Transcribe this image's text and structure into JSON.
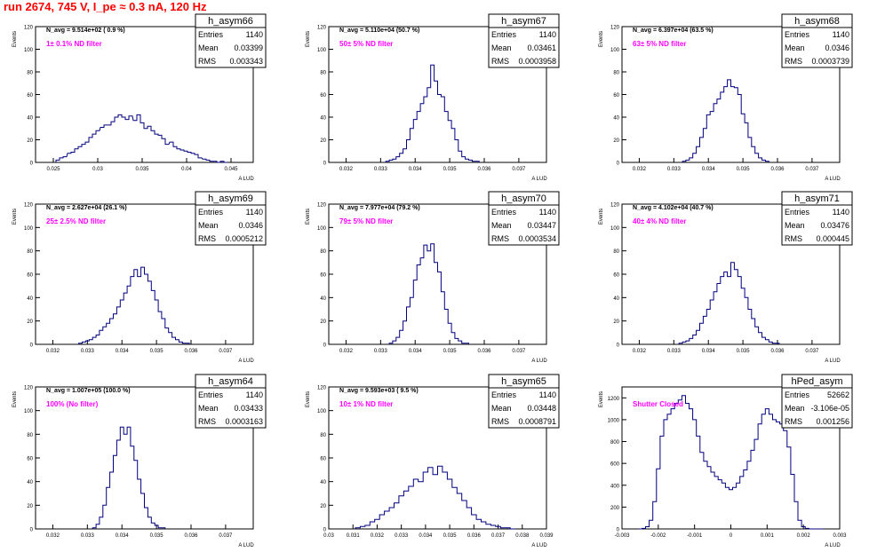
{
  "page_title": "run 2674,   745 V, I_pe ≈ 0.3 nA, 120 Hz",
  "colors": {
    "histogram": "#00007f",
    "annotation_magenta": "#ff00ff",
    "title_red": "#ff0000"
  },
  "stat_labels": {
    "entries": "Entries",
    "mean": "Mean",
    "rms": "RMS"
  },
  "chart_data": [
    {
      "name": "h_asym66",
      "type": "histogram",
      "navg": "N_avg = 9.514e+02 ( 0.9 %)",
      "note": "1± 0.1% ND filter",
      "entries": "1140",
      "mean": "0.03399",
      "rms": "0.003343",
      "xlim": [
        0.023,
        0.0475
      ],
      "ylim": [
        0,
        120
      ],
      "xticks": [
        "0.025",
        "0.03",
        "0.035",
        "0.04",
        "0.045"
      ],
      "xtick_vals": [
        0.025,
        0.03,
        0.035,
        0.04,
        0.045
      ],
      "yticks": [
        "0",
        "20",
        "40",
        "60",
        "80",
        "100",
        "120"
      ],
      "ytick_vals": [
        0,
        20,
        40,
        60,
        80,
        100,
        120
      ],
      "ylabel": "Events",
      "xlabel": "A_LUD",
      "bins": [
        0.0255,
        0.0259,
        0.0263,
        0.0268,
        0.0272,
        0.0276,
        0.028,
        0.0284,
        0.0288,
        0.0292,
        0.0296,
        0.03,
        0.0305,
        0.0309,
        0.0313,
        0.0317,
        0.0321,
        0.0325,
        0.0329,
        0.0333,
        0.0337,
        0.0342,
        0.0346,
        0.035,
        0.0354,
        0.0358,
        0.0362,
        0.0366,
        0.037,
        0.0374,
        0.0378,
        0.0383,
        0.0387,
        0.0391,
        0.0395,
        0.0399,
        0.0403,
        0.0407,
        0.0411,
        0.0415,
        0.042,
        0.0424,
        0.0428,
        0.0432,
        0.0436,
        0.044,
        0.0444
      ],
      "counts": [
        2,
        4,
        5,
        8,
        9,
        12,
        14,
        16,
        18,
        22,
        25,
        28,
        31,
        33,
        33,
        36,
        40,
        42,
        40,
        38,
        41,
        37,
        42,
        35,
        30,
        32,
        28,
        25,
        24,
        21,
        16,
        18,
        14,
        12,
        11,
        10,
        9,
        8,
        7,
        4,
        3,
        2,
        1,
        1,
        0,
        1,
        0
      ]
    },
    {
      "name": "h_asym67",
      "type": "histogram",
      "navg": "N_avg = 5.110e+04 (50.7 %)",
      "note": "50± 5% ND filter",
      "entries": "1140",
      "mean": "0.03461",
      "rms": "0.0003958",
      "xlim": [
        0.0315,
        0.0378
      ],
      "ylim": [
        0,
        120
      ],
      "xticks": [
        "0.032",
        "0.033",
        "0.034",
        "0.035",
        "0.036",
        "0.037"
      ],
      "xtick_vals": [
        0.032,
        0.033,
        0.034,
        0.035,
        0.036,
        0.037
      ],
      "yticks": [
        "0",
        "20",
        "40",
        "60",
        "80",
        "100",
        "120"
      ],
      "ytick_vals": [
        0,
        20,
        40,
        60,
        80,
        100,
        120
      ],
      "ylabel": "Events",
      "xlabel": "A_LUD",
      "bins": [
        0.0332,
        0.0333,
        0.0334,
        0.0335,
        0.0336,
        0.0337,
        0.0338,
        0.0339,
        0.034,
        0.0341,
        0.0342,
        0.0343,
        0.0344,
        0.0345,
        0.0346,
        0.0347,
        0.0348,
        0.0349,
        0.035,
        0.0351,
        0.0352,
        0.0353,
        0.0354,
        0.0355,
        0.0356,
        0.0357,
        0.0358
      ],
      "counts": [
        1,
        2,
        3,
        5,
        8,
        12,
        20,
        30,
        38,
        45,
        52,
        58,
        66,
        86,
        72,
        60,
        58,
        45,
        37,
        30,
        20,
        10,
        5,
        3,
        2,
        1,
        1
      ]
    },
    {
      "name": "h_asym68",
      "type": "histogram",
      "navg": "N_avg = 6.397e+04 (63.5 %)",
      "note": "63± 5% ND filter",
      "entries": "1140",
      "mean": "0.0346",
      "rms": "0.0003739",
      "xlim": [
        0.0315,
        0.0378
      ],
      "ylim": [
        0,
        120
      ],
      "xticks": [
        "0.032",
        "0.033",
        "0.034",
        "0.035",
        "0.036",
        "0.037"
      ],
      "xtick_vals": [
        0.032,
        0.033,
        0.034,
        0.035,
        0.036,
        0.037
      ],
      "yticks": [
        "0",
        "20",
        "40",
        "60",
        "80",
        "100",
        "120"
      ],
      "ytick_vals": [
        0,
        20,
        40,
        60,
        80,
        100,
        120
      ],
      "ylabel": "Events",
      "xlabel": "A_LUD",
      "bins": [
        0.0333,
        0.0334,
        0.0335,
        0.0336,
        0.0337,
        0.0338,
        0.0339,
        0.034,
        0.0341,
        0.0342,
        0.0343,
        0.0344,
        0.0345,
        0.0346,
        0.0347,
        0.0348,
        0.0349,
        0.035,
        0.0351,
        0.0352,
        0.0353,
        0.0354,
        0.0355,
        0.0356,
        0.0357
      ],
      "counts": [
        1,
        2,
        4,
        8,
        14,
        22,
        30,
        42,
        45,
        52,
        56,
        62,
        67,
        73,
        67,
        66,
        60,
        43,
        35,
        22,
        14,
        8,
        4,
        2,
        1
      ]
    },
    {
      "name": "h_asym69",
      "type": "histogram",
      "navg": "N_avg = 2.627e+04 (26.1 %)",
      "note": "25± 2.5% ND filter",
      "entries": "1140",
      "mean": "0.0346",
      "rms": "0.0005212",
      "xlim": [
        0.0315,
        0.0378
      ],
      "ylim": [
        0,
        120
      ],
      "xticks": [
        "0.032",
        "0.033",
        "0.034",
        "0.035",
        "0.036",
        "0.037"
      ],
      "xtick_vals": [
        0.032,
        0.033,
        0.034,
        0.035,
        0.036,
        0.037
      ],
      "yticks": [
        "0",
        "20",
        "40",
        "60",
        "80",
        "100",
        "120"
      ],
      "ytick_vals": [
        0,
        20,
        40,
        60,
        80,
        100,
        120
      ],
      "ylabel": "Events",
      "xlabel": "A_LUD",
      "bins": [
        0.0328,
        0.0329,
        0.033,
        0.0331,
        0.0332,
        0.0333,
        0.0334,
        0.0335,
        0.0336,
        0.0337,
        0.0338,
        0.0339,
        0.034,
        0.0341,
        0.0342,
        0.0343,
        0.0344,
        0.0345,
        0.0346,
        0.0347,
        0.0348,
        0.0349,
        0.035,
        0.0351,
        0.0352,
        0.0353,
        0.0354,
        0.0355,
        0.0356,
        0.0357,
        0.0358,
        0.0359
      ],
      "counts": [
        1,
        2,
        3,
        4,
        6,
        8,
        12,
        15,
        18,
        22,
        26,
        32,
        38,
        44,
        50,
        58,
        64,
        58,
        66,
        60,
        54,
        46,
        38,
        28,
        22,
        14,
        10,
        6,
        4,
        2,
        1,
        1
      ]
    },
    {
      "name": "h_asym70",
      "type": "histogram",
      "navg": "N_avg = 7.977e+04 (79.2 %)",
      "note": "79± 5% ND filter",
      "entries": "1140",
      "mean": "0.03447",
      "rms": "0.0003534",
      "xlim": [
        0.0315,
        0.0378
      ],
      "ylim": [
        0,
        120
      ],
      "xticks": [
        "0.032",
        "0.033",
        "0.034",
        "0.035",
        "0.036",
        "0.037"
      ],
      "xtick_vals": [
        0.032,
        0.033,
        0.034,
        0.035,
        0.036,
        0.037
      ],
      "yticks": [
        "0",
        "20",
        "40",
        "60",
        "80",
        "100",
        "120"
      ],
      "ytick_vals": [
        0,
        20,
        40,
        60,
        80,
        100,
        120
      ],
      "ylabel": "Events",
      "xlabel": "A_LUD",
      "bins": [
        0.0333,
        0.0334,
        0.0335,
        0.0336,
        0.0337,
        0.0338,
        0.0339,
        0.034,
        0.0341,
        0.0342,
        0.0343,
        0.0344,
        0.0345,
        0.0346,
        0.0347,
        0.0348,
        0.0349,
        0.035,
        0.0351,
        0.0352,
        0.0353,
        0.0354,
        0.0355
      ],
      "counts": [
        1,
        3,
        6,
        12,
        20,
        32,
        40,
        55,
        68,
        74,
        85,
        80,
        86,
        70,
        62,
        45,
        30,
        18,
        10,
        5,
        3,
        1,
        1
      ]
    },
    {
      "name": "h_asym71",
      "type": "histogram",
      "navg": "N_avg = 4.102e+04 (40.7 %)",
      "note": "40± 4% ND filter",
      "entries": "1140",
      "mean": "0.03476",
      "rms": "0.000445",
      "xlim": [
        0.0315,
        0.0378
      ],
      "ylim": [
        0,
        120
      ],
      "xticks": [
        "0.032",
        "0.033",
        "0.034",
        "0.035",
        "0.036",
        "0.037"
      ],
      "xtick_vals": [
        0.032,
        0.033,
        0.034,
        0.035,
        0.036,
        0.037
      ],
      "yticks": [
        "0",
        "20",
        "40",
        "60",
        "80",
        "100",
        "120"
      ],
      "ytick_vals": [
        0,
        20,
        40,
        60,
        80,
        100,
        120
      ],
      "ylabel": "Events",
      "xlabel": "A_LUD",
      "bins": [
        0.0332,
        0.0333,
        0.0334,
        0.0335,
        0.0336,
        0.0337,
        0.0338,
        0.0339,
        0.034,
        0.0341,
        0.0342,
        0.0343,
        0.0344,
        0.0345,
        0.0346,
        0.0347,
        0.0348,
        0.0349,
        0.035,
        0.0351,
        0.0352,
        0.0353,
        0.0354,
        0.0355,
        0.0356,
        0.0357,
        0.0358,
        0.0359,
        0.036
      ],
      "counts": [
        1,
        2,
        3,
        5,
        8,
        12,
        18,
        24,
        30,
        38,
        45,
        52,
        58,
        62,
        58,
        70,
        64,
        58,
        48,
        40,
        30,
        22,
        15,
        10,
        6,
        4,
        2,
        1,
        1
      ]
    },
    {
      "name": "h_asym64",
      "type": "histogram",
      "navg": "N_avg = 1.007e+05 (100.0 %)",
      "note": "100% (No filter)",
      "entries": "1140",
      "mean": "0.03433",
      "rms": "0.0003163",
      "xlim": [
        0.0315,
        0.0378
      ],
      "ylim": [
        0,
        120
      ],
      "xticks": [
        "0.032",
        "0.033",
        "0.034",
        "0.035",
        "0.036",
        "0.037"
      ],
      "xtick_vals": [
        0.032,
        0.033,
        0.034,
        0.035,
        0.036,
        0.037
      ],
      "yticks": [
        "0",
        "20",
        "40",
        "60",
        "80",
        "100",
        "120"
      ],
      "ytick_vals": [
        0,
        20,
        40,
        60,
        80,
        100,
        120
      ],
      "ylabel": "Events",
      "xlabel": "A_LUD",
      "bins": [
        0.0332,
        0.0333,
        0.0334,
        0.0335,
        0.0336,
        0.0337,
        0.0338,
        0.0339,
        0.034,
        0.0341,
        0.0342,
        0.0343,
        0.0344,
        0.0345,
        0.0346,
        0.0347,
        0.0348,
        0.0349,
        0.035,
        0.0351,
        0.0352
      ],
      "counts": [
        1,
        4,
        10,
        20,
        35,
        48,
        62,
        75,
        86,
        80,
        86,
        70,
        58,
        42,
        30,
        18,
        10,
        5,
        3,
        1,
        1
      ]
    },
    {
      "name": "h_asym65",
      "type": "histogram",
      "navg": "N_avg = 9.593e+03 ( 9.5 %)",
      "note": "10± 1% ND filter",
      "entries": "1140",
      "mean": "0.03448",
      "rms": "0.0008791",
      "xlim": [
        0.03,
        0.039
      ],
      "ylim": [
        0,
        120
      ],
      "xticks": [
        "0.03",
        "0.031",
        "0.032",
        "0.033",
        "0.034",
        "0.035",
        "0.036",
        "0.037",
        "0.038",
        "0.039"
      ],
      "xtick_vals": [
        0.03,
        0.031,
        0.032,
        0.033,
        0.034,
        0.035,
        0.036,
        0.037,
        0.038,
        0.039
      ],
      "yticks": [
        "0",
        "20",
        "40",
        "60",
        "80",
        "100",
        "120"
      ],
      "ytick_vals": [
        0,
        20,
        40,
        60,
        80,
        100,
        120
      ],
      "ylabel": "Events",
      "xlabel": "A_LUD",
      "bins": [
        0.0312,
        0.0314,
        0.0316,
        0.0318,
        0.032,
        0.0322,
        0.0324,
        0.0326,
        0.0328,
        0.033,
        0.0332,
        0.0334,
        0.0336,
        0.0338,
        0.034,
        0.0342,
        0.0344,
        0.0346,
        0.0348,
        0.035,
        0.0352,
        0.0354,
        0.0356,
        0.0358,
        0.036,
        0.0362,
        0.0364,
        0.0366,
        0.0368,
        0.037,
        0.0372,
        0.0374,
        0.0376
      ],
      "counts": [
        1,
        2,
        3,
        6,
        8,
        12,
        15,
        18,
        22,
        28,
        32,
        36,
        42,
        40,
        48,
        52,
        46,
        53,
        48,
        42,
        35,
        30,
        24,
        18,
        12,
        8,
        6,
        4,
        3,
        2,
        1,
        1,
        0
      ]
    },
    {
      "name": "hPed_asym",
      "type": "histogram",
      "navg": "",
      "note": "Shutter Closed",
      "entries": "52662",
      "mean": "-3.106e-05",
      "rms": "0.001256",
      "xlim": [
        -0.003,
        0.003
      ],
      "ylim": [
        0,
        1300
      ],
      "xticks": [
        "-0.003",
        "-0.002",
        "-0.001",
        "0",
        "0.001",
        "0.002",
        "0.003"
      ],
      "xtick_vals": [
        -0.003,
        -0.002,
        -0.001,
        0,
        0.001,
        0.002,
        0.003
      ],
      "yticks": [
        "0",
        "200",
        "400",
        "600",
        "800",
        "1000",
        "1200"
      ],
      "ytick_vals": [
        0,
        200,
        400,
        600,
        800,
        1000,
        1200
      ],
      "ylabel": "Events",
      "xlabel": "A_LUD",
      "bins": [
        -0.0025,
        -0.0024,
        -0.0023,
        -0.0022,
        -0.0021,
        -0.002,
        -0.0019,
        -0.0018,
        -0.0017,
        -0.0016,
        -0.0015,
        -0.0014,
        -0.0013,
        -0.0012,
        -0.0011,
        -0.001,
        -0.0009,
        -0.0008,
        -0.0007,
        -0.0006,
        -0.0005,
        -0.0004,
        -0.0003,
        -0.0002,
        -0.0001,
        0,
        0.0001,
        0.0002,
        0.0003,
        0.0004,
        0.0005,
        0.0006,
        0.0007,
        0.0008,
        0.0009,
        0.001,
        0.0011,
        0.0012,
        0.0013,
        0.0014,
        0.0015,
        0.0016,
        0.0017,
        0.0018,
        0.0019,
        0.002,
        0.0021,
        0.0022,
        0.0023,
        0.0024,
        0.0025
      ],
      "counts": [
        0,
        5,
        20,
        80,
        250,
        550,
        850,
        1000,
        1050,
        1100,
        1150,
        1180,
        1220,
        1150,
        1100,
        1000,
        850,
        700,
        620,
        570,
        520,
        480,
        450,
        420,
        380,
        360,
        380,
        420,
        480,
        540,
        620,
        720,
        820,
        960,
        1050,
        1100,
        1050,
        1000,
        980,
        960,
        900,
        750,
        500,
        250,
        80,
        20,
        5,
        0,
        0,
        0,
        0
      ]
    }
  ]
}
